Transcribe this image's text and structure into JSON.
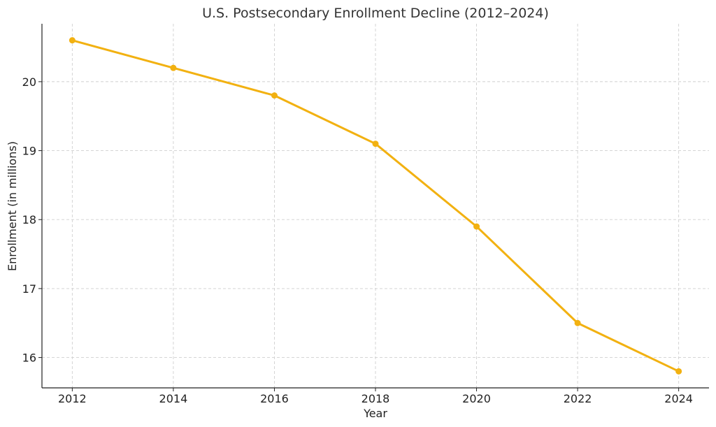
{
  "chart_data": {
    "type": "line",
    "title": "U.S. Postsecondary Enrollment Decline (2012–2024)",
    "xlabel": "Year",
    "ylabel": "Enrollment (in millions)",
    "x": [
      2012,
      2014,
      2016,
      2018,
      2020,
      2022,
      2024
    ],
    "x_tick_labels": [
      "2012",
      "2014",
      "2016",
      "2018",
      "2020",
      "2022",
      "2024"
    ],
    "y_ticks": [
      16,
      17,
      18,
      19,
      20
    ],
    "y_tick_labels": [
      "16",
      "17",
      "18",
      "19",
      "20"
    ],
    "xlim": [
      2011.4,
      2024.6
    ],
    "ylim": [
      15.56,
      20.84
    ],
    "grid": true,
    "series": [
      {
        "name": "Enrollment",
        "values": [
          20.6,
          20.2,
          19.8,
          19.1,
          17.9,
          16.5,
          15.8
        ],
        "color": "#f2b111"
      }
    ]
  }
}
